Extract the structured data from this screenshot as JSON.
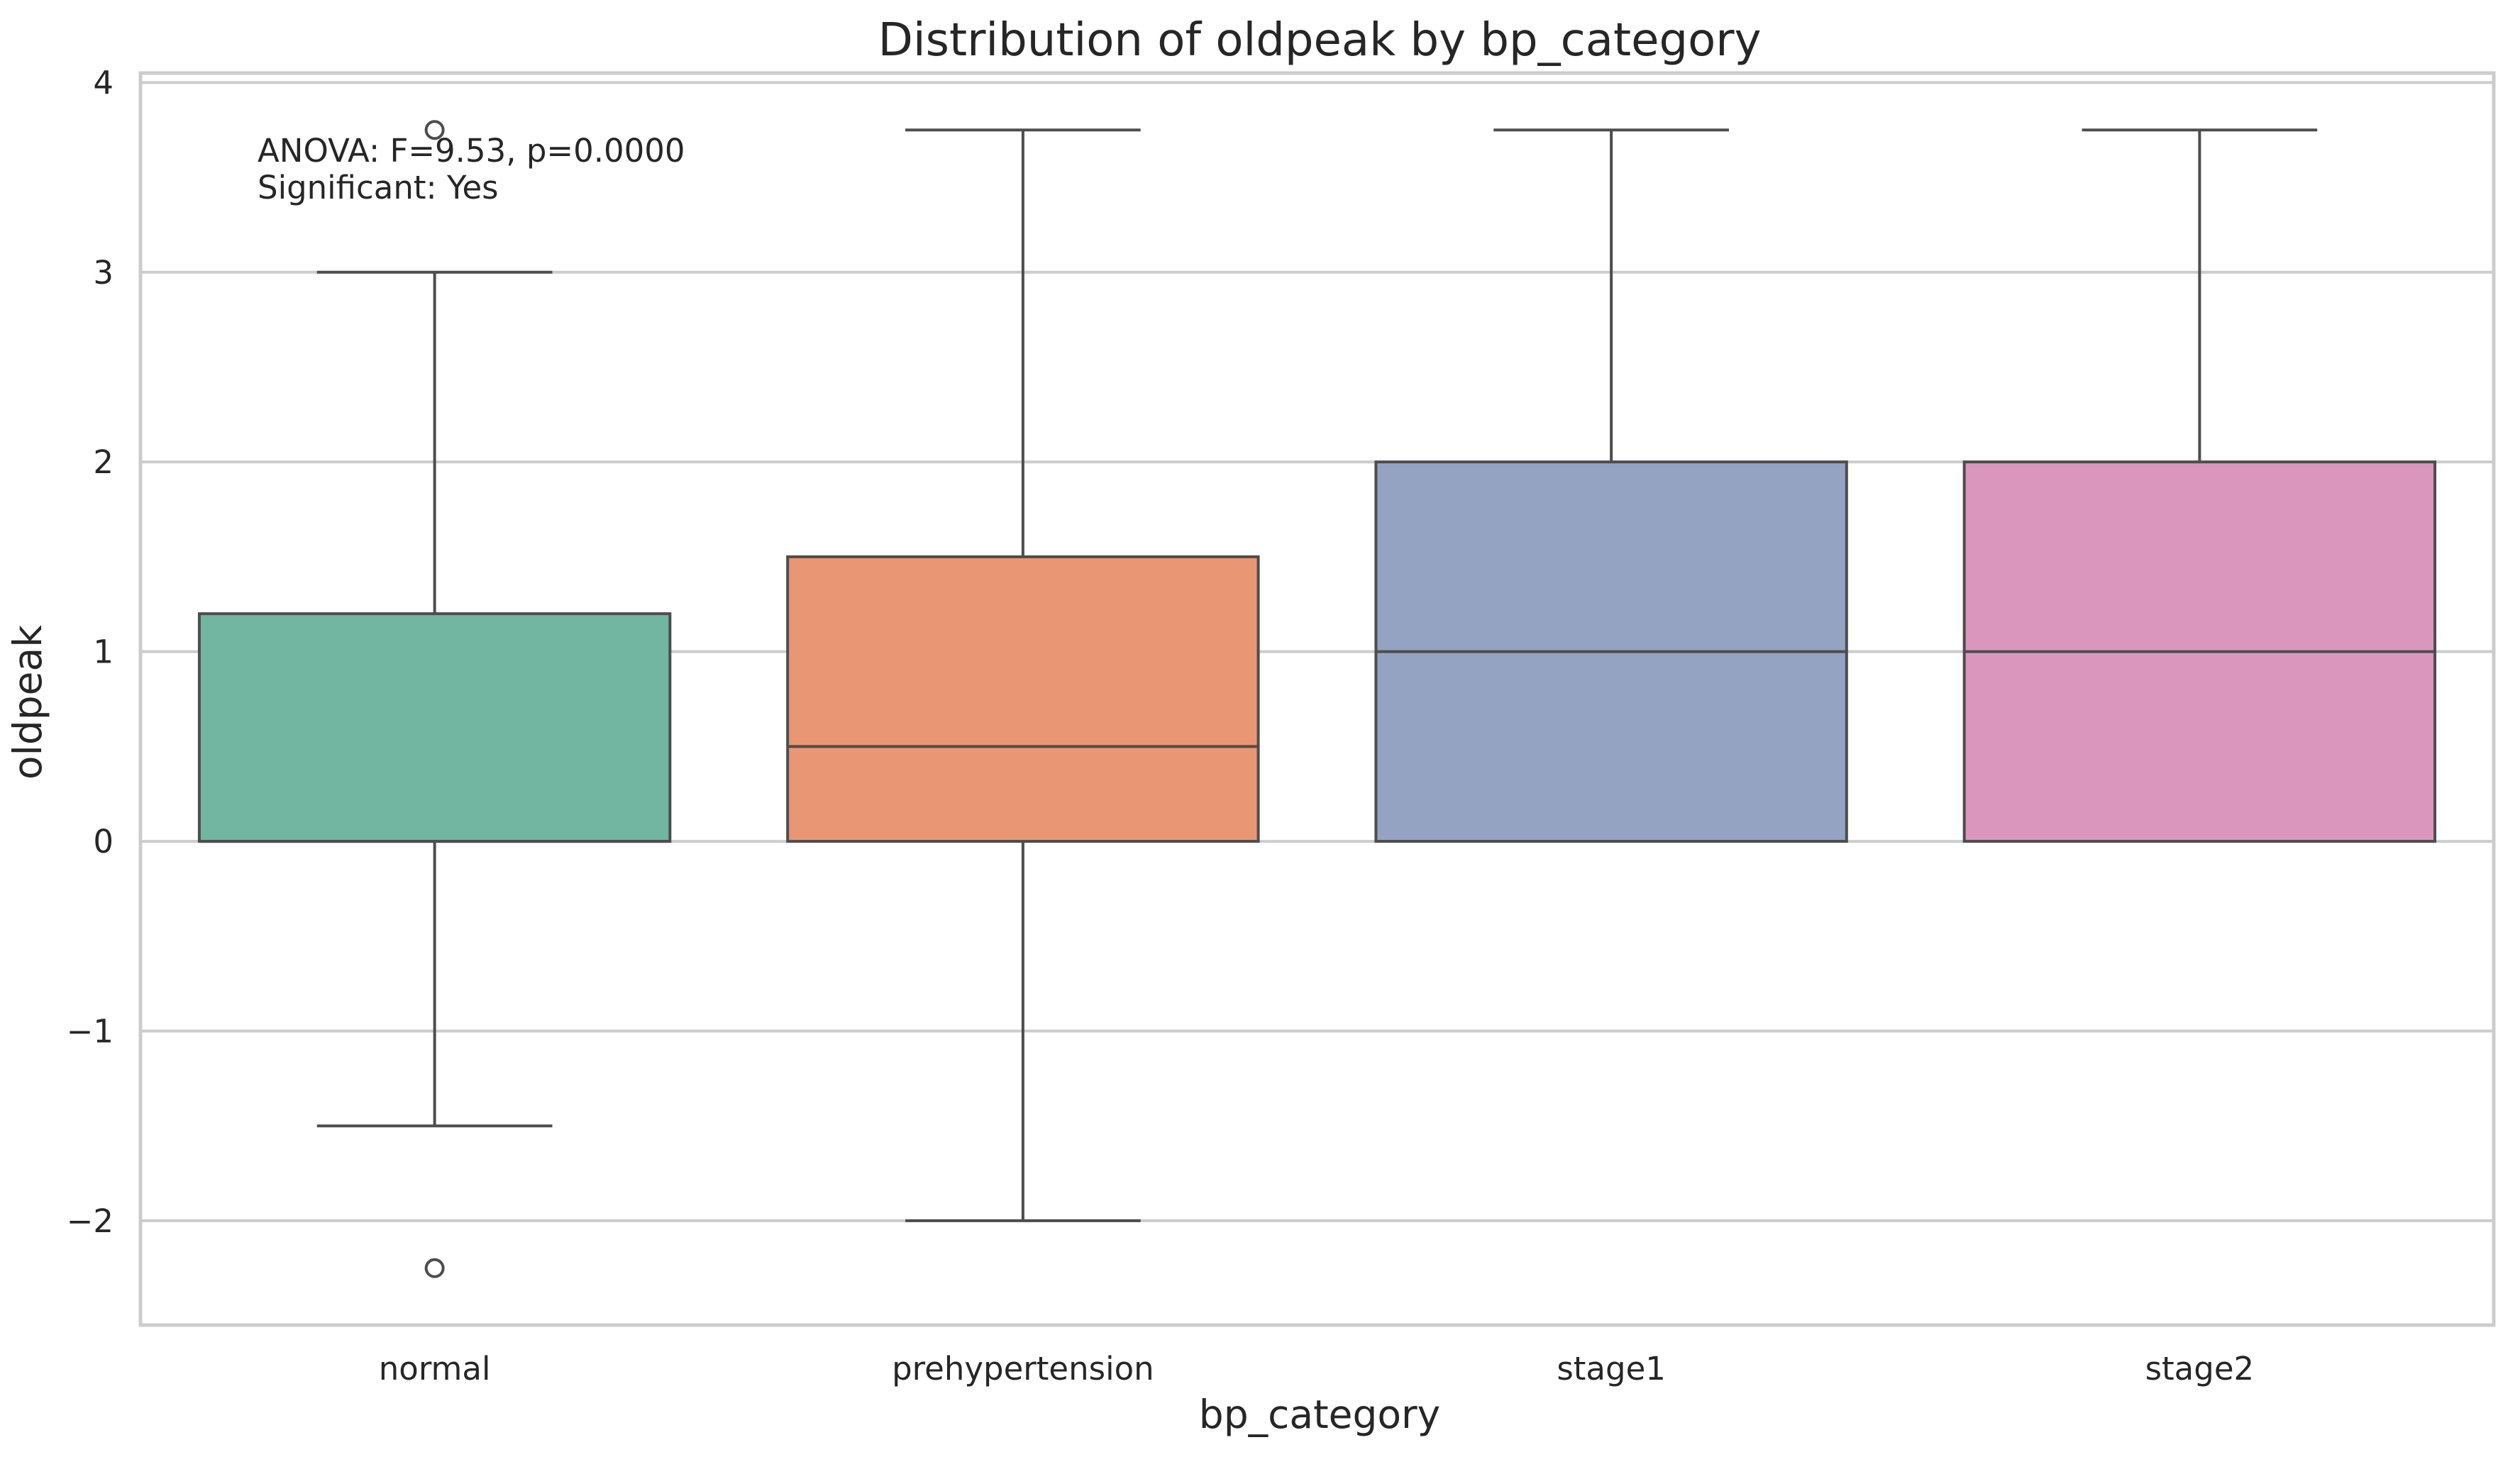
{
  "chart_data": {
    "type": "box",
    "title": "Distribution of oldpeak by bp_category",
    "xlabel": "bp_category",
    "ylabel": "oldpeak",
    "ylim": [
      -2.55,
      4.05
    ],
    "yticks": [
      -2,
      -1,
      0,
      1,
      2,
      3,
      4
    ],
    "ytick_labels": [
      "−2",
      "−1",
      "0",
      "1",
      "2",
      "3",
      "4"
    ],
    "grid": true,
    "categories": [
      "normal",
      "prehypertension",
      "stage1",
      "stage2"
    ],
    "boxes": [
      {
        "category": "normal",
        "whisker_low": -1.5,
        "q1": 0,
        "median": 0,
        "q3": 1.2,
        "whisker_high": 3.0,
        "outliers": [
          3.75,
          -2.25
        ],
        "color": "#72b6a1"
      },
      {
        "category": "prehypertension",
        "whisker_low": -2.0,
        "q1": 0,
        "median": 0.5,
        "q3": 1.5,
        "whisker_high": 3.75,
        "outliers": [],
        "color": "#e99675"
      },
      {
        "category": "stage1",
        "whisker_low": 0,
        "q1": 0,
        "median": 1.0,
        "q3": 2.0,
        "whisker_high": 3.75,
        "outliers": [],
        "color": "#95a3c3"
      },
      {
        "category": "stage2",
        "whisker_low": 0,
        "q1": 0,
        "median": 1.0,
        "q3": 2.0,
        "whisker_high": 3.75,
        "outliers": [],
        "color": "#db96be"
      }
    ],
    "annotation": [
      "ANOVA: F=9.53, p=0.0000",
      "Significant: Yes"
    ]
  }
}
